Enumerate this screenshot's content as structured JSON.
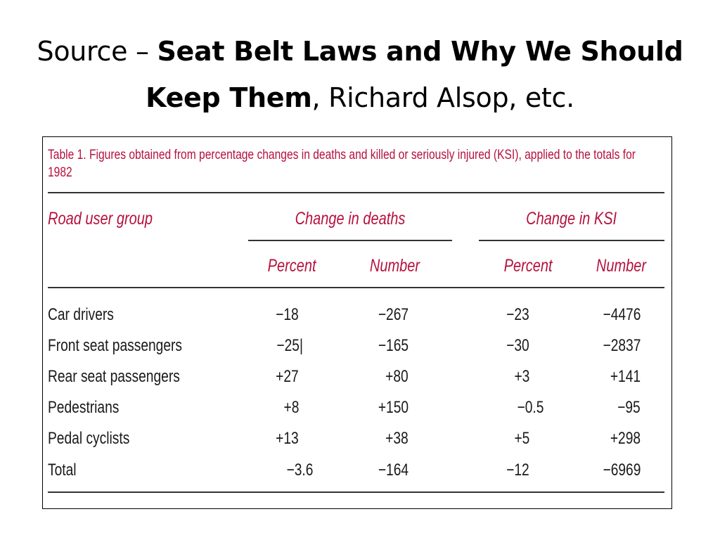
{
  "slide": {
    "title_prefix": "Source – ",
    "title_bold": "Seat Belt Laws and Why We Should Keep Them",
    "title_suffix": ", Richard Alsop, etc."
  },
  "table": {
    "caption": "Table 1. Figures obtained from percentage changes in deaths and killed or seriously injured (KSI), applied to the totals for 1982",
    "headers": {
      "group": "Road user group",
      "deaths": "Change in deaths",
      "ksi": "Change in KSI",
      "percent": "Percent",
      "number": "Number"
    },
    "rows": [
      {
        "group": "Car drivers",
        "death_pct": "−18",
        "death_num": "−267",
        "ksi_pct": "−23",
        "ksi_num": "−4476"
      },
      {
        "group": "Front seat passengers",
        "death_pct": "−25|",
        "death_num": "−165",
        "ksi_pct": "−30",
        "ksi_num": "−2837"
      },
      {
        "group": "Rear seat passengers",
        "death_pct": "+27",
        "death_num": "+80",
        "ksi_pct": "+3",
        "ksi_num": "+141"
      },
      {
        "group": "Pedestrians",
        "death_pct": "+8",
        "death_num": "+150",
        "ksi_pct": "−0.5",
        "ksi_num": "−95"
      },
      {
        "group": "Pedal cyclists",
        "death_pct": "+13",
        "death_num": "+38",
        "ksi_pct": "+5",
        "ksi_num": "+298"
      },
      {
        "group": "Total",
        "death_pct": "−3.6",
        "death_num": "−164",
        "ksi_pct": "−12",
        "ksi_num": "−6969"
      }
    ]
  },
  "colors": {
    "accent": "#b5113e",
    "text": "#1a1a1a",
    "rule": "#333333"
  }
}
